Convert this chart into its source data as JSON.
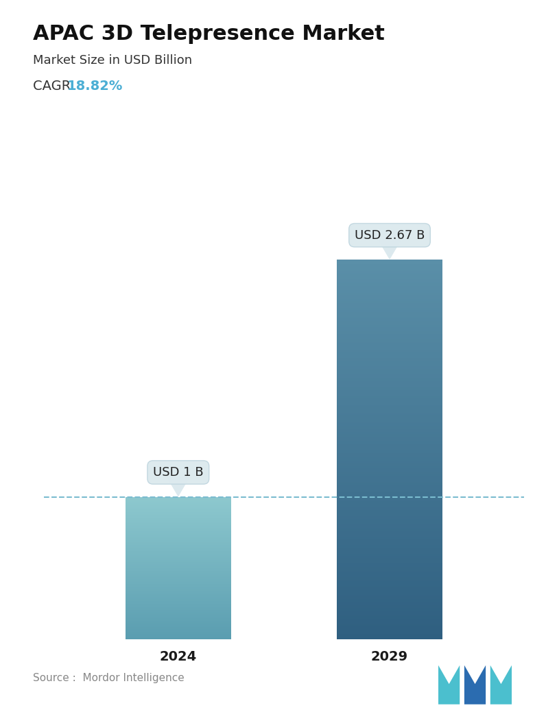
{
  "title": "APAC 3D Telepresence Market",
  "subtitle": "Market Size in USD Billion",
  "cagr_label": "CAGR ",
  "cagr_value": "18.82%",
  "cagr_color": "#4BAED4",
  "categories": [
    "2024",
    "2029"
  ],
  "values": [
    1.0,
    2.67
  ],
  "labels": [
    "USD 1 B",
    "USD 2.67 B"
  ],
  "bar_top_colors": [
    "#8DC8CE",
    "#5A8FA8"
  ],
  "bar_bottom_colors": [
    "#5A9DB0",
    "#2F5F80"
  ],
  "dashed_line_y": 1.0,
  "dashed_line_color": "#7BBCD0",
  "y_max": 3.0,
  "source_text": "Source :  Mordor Intelligence",
  "background_color": "#FFFFFF",
  "title_fontsize": 22,
  "subtitle_fontsize": 13,
  "cagr_fontsize": 14,
  "label_fontsize": 13,
  "tick_fontsize": 14,
  "source_fontsize": 11
}
